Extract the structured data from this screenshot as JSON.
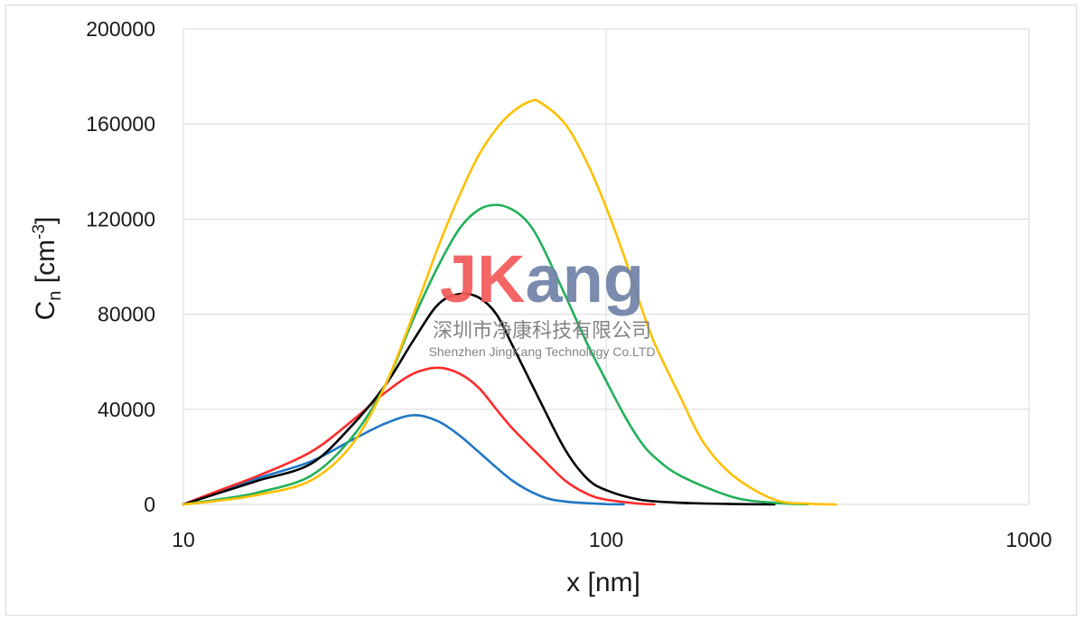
{
  "chart_data": {
    "type": "line",
    "title": "",
    "xlabel": "x [nm]",
    "ylabel_main": "C",
    "ylabel_sub": "n",
    "ylabel_unit_prefix": " [cm",
    "ylabel_unit_exp": "-3",
    "ylabel_unit_suffix": "]",
    "x_scale": "log",
    "xlim": [
      10,
      1000
    ],
    "ylim": [
      0,
      200000
    ],
    "x_ticks": [
      10,
      100,
      1000
    ],
    "x_tick_labels": [
      "10",
      "100",
      "1000"
    ],
    "y_ticks": [
      0,
      40000,
      80000,
      120000,
      160000,
      200000
    ],
    "y_tick_labels": [
      "0",
      "40000",
      "80000",
      "120000",
      "160000",
      "200000"
    ],
    "grid": true,
    "legend": "none",
    "series": [
      {
        "color": "#1f77c4",
        "points": [
          [
            10,
            0
          ],
          [
            12,
            5000
          ],
          [
            15,
            11000
          ],
          [
            20,
            18000
          ],
          [
            25,
            27000
          ],
          [
            30,
            34000
          ],
          [
            35,
            37500
          ],
          [
            40,
            35000
          ],
          [
            45,
            29000
          ],
          [
            50,
            22000
          ],
          [
            60,
            10000
          ],
          [
            70,
            3500
          ],
          [
            80,
            1200
          ],
          [
            100,
            100
          ],
          [
            110,
            0
          ]
        ]
      },
      {
        "color": "#ff2b2b",
        "points": [
          [
            10,
            0
          ],
          [
            12,
            5500
          ],
          [
            15,
            12000
          ],
          [
            20,
            22000
          ],
          [
            25,
            35000
          ],
          [
            30,
            47000
          ],
          [
            35,
            55000
          ],
          [
            40,
            57500
          ],
          [
            45,
            55000
          ],
          [
            50,
            49000
          ],
          [
            55,
            40000
          ],
          [
            60,
            32000
          ],
          [
            70,
            20000
          ],
          [
            80,
            10000
          ],
          [
            90,
            4500
          ],
          [
            100,
            2000
          ],
          [
            120,
            300
          ],
          [
            130,
            0
          ]
        ]
      },
      {
        "color": "#000000",
        "points": [
          [
            10,
            0
          ],
          [
            12,
            4500
          ],
          [
            15,
            10000
          ],
          [
            20,
            17000
          ],
          [
            25,
            33000
          ],
          [
            30,
            50000
          ],
          [
            35,
            69000
          ],
          [
            40,
            84000
          ],
          [
            45,
            88500
          ],
          [
            50,
            87000
          ],
          [
            55,
            80000
          ],
          [
            60,
            67000
          ],
          [
            70,
            43000
          ],
          [
            80,
            23000
          ],
          [
            90,
            11000
          ],
          [
            100,
            6000
          ],
          [
            120,
            2000
          ],
          [
            150,
            700
          ],
          [
            200,
            150
          ],
          [
            250,
            0
          ]
        ]
      },
      {
        "color": "#22b05a",
        "points": [
          [
            10,
            0
          ],
          [
            12,
            2000
          ],
          [
            15,
            5000
          ],
          [
            20,
            12000
          ],
          [
            25,
            28000
          ],
          [
            30,
            50000
          ],
          [
            35,
            78000
          ],
          [
            40,
            100000
          ],
          [
            45,
            116000
          ],
          [
            50,
            124000
          ],
          [
            55,
            126000
          ],
          [
            60,
            124000
          ],
          [
            65,
            119000
          ],
          [
            70,
            110000
          ],
          [
            80,
            88000
          ],
          [
            90,
            68000
          ],
          [
            100,
            52000
          ],
          [
            110,
            38000
          ],
          [
            120,
            27000
          ],
          [
            130,
            20000
          ],
          [
            150,
            12000
          ],
          [
            200,
            3000
          ],
          [
            250,
            700
          ],
          [
            300,
            0
          ]
        ]
      },
      {
        "color": "#ffc000",
        "points": [
          [
            10,
            0
          ],
          [
            12,
            1500
          ],
          [
            15,
            4000
          ],
          [
            20,
            10000
          ],
          [
            25,
            25000
          ],
          [
            30,
            50000
          ],
          [
            35,
            80000
          ],
          [
            40,
            108000
          ],
          [
            45,
            130000
          ],
          [
            50,
            147000
          ],
          [
            55,
            158000
          ],
          [
            60,
            165000
          ],
          [
            66,
            169500
          ],
          [
            70,
            169000
          ],
          [
            80,
            160000
          ],
          [
            90,
            144000
          ],
          [
            100,
            125000
          ],
          [
            110,
            105000
          ],
          [
            120,
            85000
          ],
          [
            130,
            68000
          ],
          [
            150,
            45000
          ],
          [
            170,
            26000
          ],
          [
            200,
            12000
          ],
          [
            250,
            2000
          ],
          [
            300,
            300
          ],
          [
            350,
            0
          ]
        ]
      }
    ]
  },
  "watermark": {
    "brand_a": "JK",
    "brand_b": "ang",
    "company_cn": "深圳市净康科技有限公司",
    "company_en": "Shenzhen JingKang Technology Co.LTD",
    "color_a": "#f45a5a",
    "color_b": "#6f82a8"
  }
}
